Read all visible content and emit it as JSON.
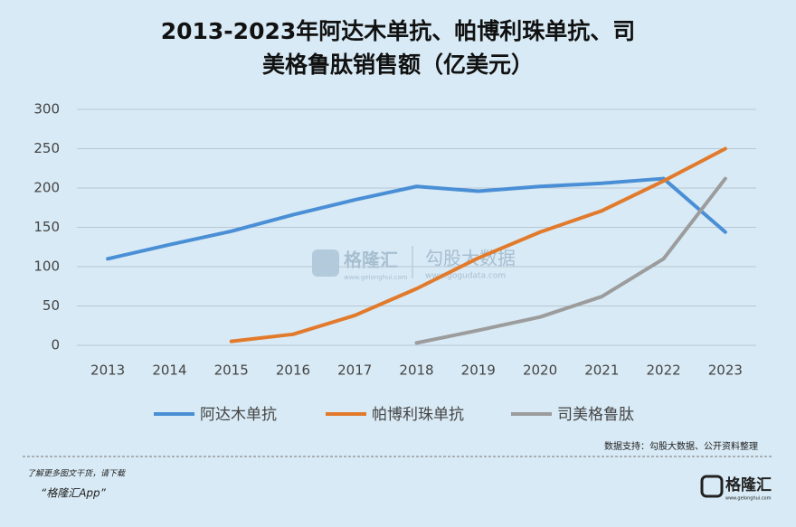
{
  "chart_data": {
    "type": "line",
    "title": [
      "2013-2023年阿达木单抗、帕博利珠单抗、司",
      "美格鲁肽销售额（亿美元）"
    ],
    "categories": [
      "2013",
      "2014",
      "2015",
      "2016",
      "2017",
      "2018",
      "2019",
      "2020",
      "2021",
      "2022",
      "2023"
    ],
    "series": [
      {
        "name": "阿达木单抗",
        "color": "#4a8fd6",
        "values": [
          110,
          128,
          145,
          166,
          185,
          202,
          196,
          202,
          206,
          212,
          144
        ]
      },
      {
        "name": "帕博利珠单抗",
        "color": "#e27a2c",
        "values": [
          null,
          null,
          5,
          14,
          38,
          72,
          111,
          144,
          171,
          209,
          250
        ]
      },
      {
        "name": "司美格鲁肽",
        "color": "#9c9c9c",
        "values": [
          null,
          null,
          null,
          null,
          null,
          3,
          19,
          36,
          62,
          110,
          212
        ]
      }
    ],
    "ylim": [
      0,
      300
    ],
    "yticks": [
      0,
      50,
      100,
      150,
      200,
      250,
      300
    ],
    "grid": true,
    "legend": "bottom"
  },
  "watermark": {
    "brand": "格隆汇",
    "brand_url": "www.gelonghui.com",
    "partner": "勾股大数据",
    "partner_url": "www.gogudata.com"
  },
  "source": "数据支持：勾股大数据、公开资料整理",
  "footer": {
    "note": "了解更多图文干货，请下载",
    "app": "“格隆汇App”",
    "logo": "格隆汇",
    "logo_url": "www.gelonghui.com"
  }
}
